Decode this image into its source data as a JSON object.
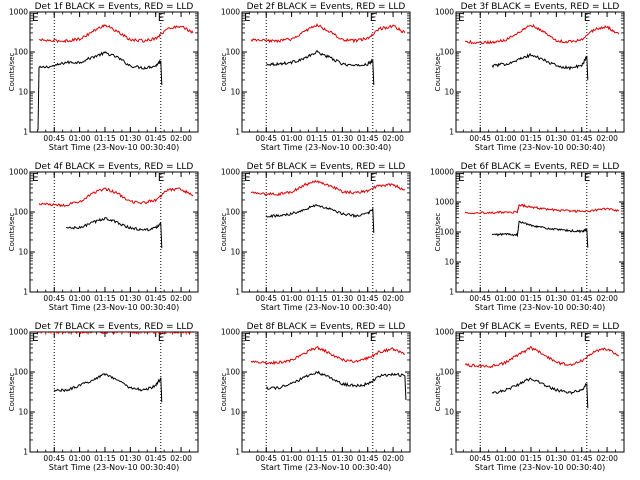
{
  "figure": {
    "colors": {
      "events": "#000000",
      "lld": "#e00000",
      "axis": "#000000"
    },
    "xticks": [
      "00:45",
      "01:00",
      "01:15",
      "01:30",
      "01:45",
      "02:00"
    ],
    "yticks": [
      "1",
      "10",
      "100",
      "1000"
    ],
    "yticks_extended": [
      "1",
      "10",
      "100",
      "1000",
      "10000"
    ],
    "xlabel": "Start Time (23-Nov-10 00:30:40)",
    "ylabel": "Counts/sec",
    "marker_left": "E",
    "marker_right": "E"
  },
  "chart_data": [
    {
      "type": "line",
      "title": "Det 1f BLACK = Events, RED = LLD",
      "yscale": "log",
      "ylim": [
        1,
        1000
      ],
      "events_start_drop": true,
      "series": [
        {
          "name": "BLACK = Events",
          "x": [
            "00:36",
            "00:45",
            "00:52",
            "01:00",
            "01:08",
            "01:15",
            "01:22",
            "01:30",
            "01:38",
            "01:45",
            "01:48"
          ],
          "values": [
            40,
            45,
            55,
            55,
            75,
            95,
            75,
            45,
            40,
            45,
            60
          ]
        },
        {
          "name": "RED = LLD",
          "x": [
            "00:36",
            "00:45",
            "00:52",
            "01:00",
            "01:08",
            "01:15",
            "01:22",
            "01:30",
            "01:38",
            "01:45",
            "01:52",
            "02:00",
            "02:07"
          ],
          "values": [
            200,
            190,
            190,
            210,
            330,
            480,
            330,
            200,
            190,
            220,
            380,
            450,
            300
          ]
        }
      ]
    },
    {
      "type": "line",
      "title": "Det 2f BLACK = Events, RED = LLD",
      "yscale": "log",
      "ylim": [
        1,
        1000
      ],
      "series": [
        {
          "name": "BLACK = Events",
          "x": [
            "00:45",
            "00:52",
            "01:00",
            "01:08",
            "01:15",
            "01:22",
            "01:30",
            "01:38",
            "01:45",
            "01:48"
          ],
          "values": [
            50,
            50,
            55,
            70,
            100,
            75,
            50,
            45,
            50,
            60
          ]
        },
        {
          "name": "RED = LLD",
          "x": [
            "00:36",
            "00:45",
            "00:52",
            "01:00",
            "01:08",
            "01:15",
            "01:22",
            "01:30",
            "01:38",
            "01:45",
            "01:52",
            "02:00",
            "02:07"
          ],
          "values": [
            200,
            190,
            190,
            210,
            330,
            480,
            330,
            200,
            190,
            220,
            380,
            450,
            300
          ]
        }
      ]
    },
    {
      "type": "line",
      "title": "Det 3f BLACK = Events, RED = LLD",
      "yscale": "log",
      "ylim": [
        1,
        1000
      ],
      "series": [
        {
          "name": "BLACK = Events",
          "x": [
            "00:52",
            "01:00",
            "01:08",
            "01:15",
            "01:22",
            "01:30",
            "01:38",
            "01:45",
            "01:48"
          ],
          "values": [
            45,
            50,
            65,
            85,
            65,
            45,
            40,
            45,
            80
          ]
        },
        {
          "name": "RED = LLD",
          "x": [
            "00:36",
            "00:45",
            "00:52",
            "01:00",
            "01:08",
            "01:15",
            "01:22",
            "01:30",
            "01:38",
            "01:45",
            "01:52",
            "02:00",
            "02:07"
          ],
          "values": [
            180,
            170,
            175,
            200,
            320,
            480,
            330,
            190,
            180,
            200,
            360,
            420,
            280
          ]
        }
      ]
    },
    {
      "type": "line",
      "title": "Det 4f BLACK = Events, RED = LLD",
      "yscale": "log",
      "ylim": [
        1,
        1000
      ],
      "series": [
        {
          "name": "BLACK = Events",
          "x": [
            "00:52",
            "01:00",
            "01:08",
            "01:15",
            "01:22",
            "01:30",
            "01:38",
            "01:45",
            "01:48"
          ],
          "values": [
            40,
            40,
            55,
            70,
            55,
            40,
            35,
            40,
            50
          ]
        },
        {
          "name": "RED = LLD",
          "x": [
            "00:36",
            "00:45",
            "00:52",
            "01:00",
            "01:08",
            "01:15",
            "01:22",
            "01:30",
            "01:38",
            "01:45",
            "01:52",
            "02:00",
            "02:07"
          ],
          "values": [
            160,
            150,
            150,
            180,
            300,
            380,
            300,
            180,
            170,
            200,
            360,
            380,
            250
          ]
        }
      ]
    },
    {
      "type": "line",
      "title": "Det 5f BLACK = Events, RED = LLD",
      "yscale": "log",
      "ylim": [
        1,
        1000
      ],
      "series": [
        {
          "name": "BLACK = Events",
          "x": [
            "00:45",
            "00:52",
            "01:00",
            "01:08",
            "01:15",
            "01:22",
            "01:30",
            "01:38",
            "01:45",
            "01:48"
          ],
          "values": [
            80,
            80,
            90,
            120,
            150,
            120,
            90,
            80,
            90,
            120
          ]
        },
        {
          "name": "RED = LLD",
          "x": [
            "00:36",
            "00:45",
            "00:52",
            "01:00",
            "01:08",
            "01:15",
            "01:22",
            "01:30",
            "01:38",
            "01:45",
            "01:52",
            "02:00",
            "02:07"
          ],
          "values": [
            300,
            280,
            280,
            320,
            480,
            600,
            470,
            320,
            300,
            340,
            460,
            480,
            350
          ]
        }
      ]
    },
    {
      "type": "line",
      "title": "Det 6f BLACK = Events, RED = LLD",
      "yscale": "log",
      "ylim": [
        1,
        10000
      ],
      "extended_axis": true,
      "series": [
        {
          "name": "BLACK = Events",
          "x": [
            "00:52",
            "01:00",
            "01:07",
            "01:08",
            "01:15",
            "01:22",
            "01:30",
            "01:38",
            "01:45",
            "01:48"
          ],
          "values": [
            80,
            85,
            80,
            220,
            170,
            140,
            120,
            110,
            105,
            120
          ]
        },
        {
          "name": "RED = LLD",
          "x": [
            "00:36",
            "00:45",
            "00:52",
            "01:00",
            "01:07",
            "01:08",
            "01:15",
            "01:22",
            "01:30",
            "01:38",
            "01:45",
            "01:52",
            "02:00",
            "02:07"
          ],
          "values": [
            450,
            440,
            440,
            460,
            450,
            800,
            680,
            600,
            530,
            500,
            480,
            520,
            600,
            500
          ]
        }
      ]
    },
    {
      "type": "line",
      "title": "Det 7f BLACK = Events, RED = LLD",
      "yscale": "log",
      "ylim": [
        1,
        1000
      ],
      "series": [
        {
          "name": "BLACK = Events",
          "x": [
            "00:45",
            "00:52",
            "01:00",
            "01:08",
            "01:15",
            "01:22",
            "01:30",
            "01:38",
            "01:45",
            "01:48"
          ],
          "values": [
            35,
            35,
            45,
            65,
            90,
            65,
            40,
            35,
            45,
            70
          ]
        },
        {
          "name": "RED = LLD",
          "x": [
            "00:36",
            "00:45",
            "00:52",
            "01:00",
            "01:08",
            "01:15",
            "01:22",
            "01:30",
            "01:38",
            "01:45",
            "01:52",
            "02:00",
            "02:07"
          ],
          "values": [
            1000,
            1000,
            1000,
            1000,
            1000,
            1000,
            1000,
            1000,
            1000,
            1000,
            1000,
            1000,
            1000
          ]
        }
      ]
    },
    {
      "type": "line",
      "title": "Det 8f BLACK = Events, RED = LLD",
      "yscale": "log",
      "ylim": [
        1,
        1000
      ],
      "series": [
        {
          "name": "BLACK = Events",
          "x": [
            "00:45",
            "00:52",
            "01:00",
            "01:08",
            "01:15",
            "01:22",
            "01:30",
            "01:38",
            "01:45",
            "01:52",
            "02:00",
            "02:07"
          ],
          "values": [
            40,
            40,
            50,
            75,
            100,
            75,
            50,
            45,
            50,
            80,
            90,
            80
          ]
        },
        {
          "name": "RED = LLD",
          "x": [
            "00:36",
            "00:45",
            "00:52",
            "01:00",
            "01:08",
            "01:15",
            "01:22",
            "01:30",
            "01:38",
            "01:45",
            "01:52",
            "02:00",
            "02:07"
          ],
          "values": [
            180,
            170,
            170,
            200,
            300,
            420,
            300,
            200,
            180,
            220,
            320,
            380,
            280
          ]
        }
      ]
    },
    {
      "type": "line",
      "title": "Det 9f BLACK = Events, RED = LLD",
      "yscale": "log",
      "ylim": [
        1,
        1000
      ],
      "series": [
        {
          "name": "BLACK = Events",
          "x": [
            "00:52",
            "01:00",
            "01:08",
            "01:15",
            "01:22",
            "01:30",
            "01:38",
            "01:45",
            "01:48"
          ],
          "values": [
            30,
            35,
            50,
            70,
            50,
            35,
            30,
            35,
            50
          ]
        },
        {
          "name": "RED = LLD",
          "x": [
            "00:36",
            "00:45",
            "00:52",
            "01:00",
            "01:08",
            "01:15",
            "01:22",
            "01:30",
            "01:38",
            "01:45",
            "01:52",
            "02:00",
            "02:07"
          ],
          "values": [
            150,
            140,
            140,
            170,
            280,
            400,
            280,
            170,
            150,
            190,
            320,
            380,
            260
          ]
        }
      ]
    }
  ]
}
